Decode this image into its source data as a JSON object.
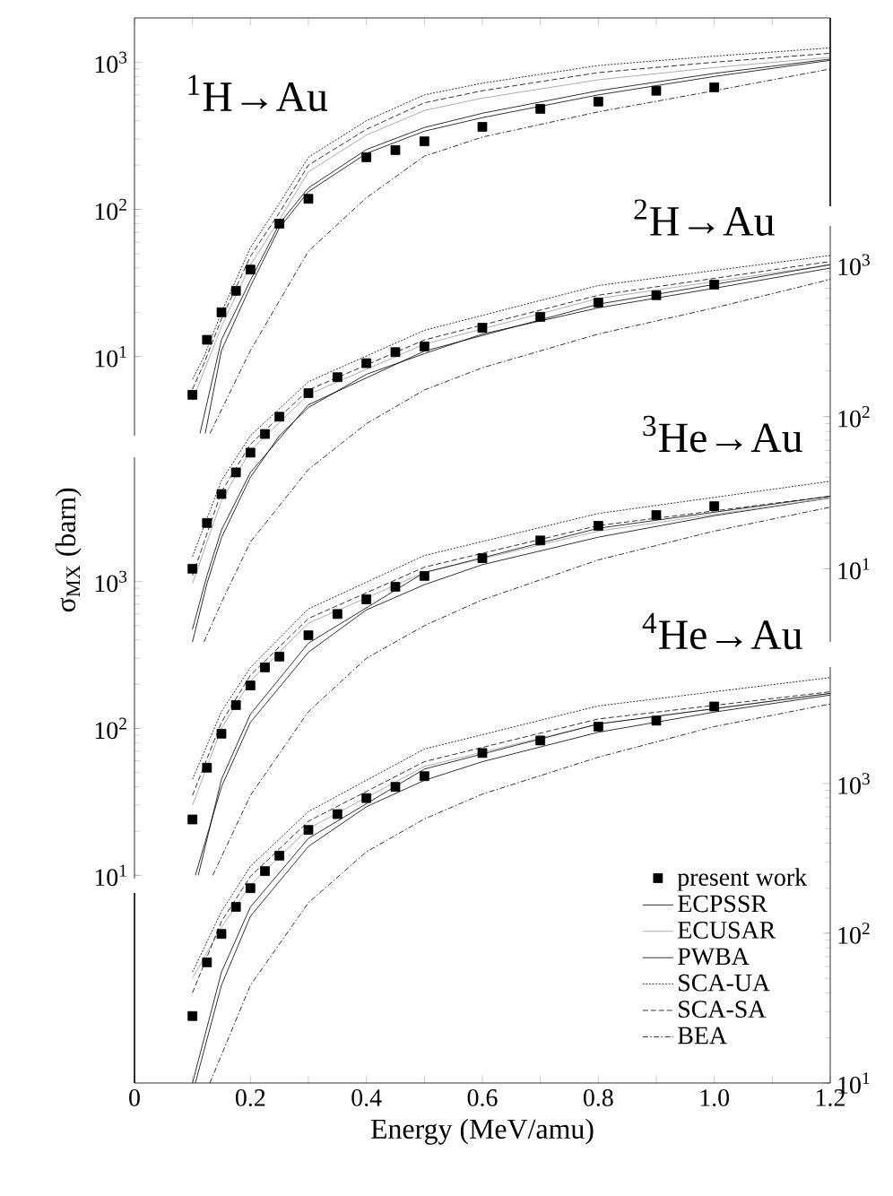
{
  "chart_data": [
    {
      "type": "line",
      "xlim": [
        0,
        1.2
      ],
      "xticks": [
        {
          "value": 0,
          "label": null
        },
        {
          "value": 0.1,
          "label": null
        },
        {
          "value": 0.2,
          "label": null
        },
        {
          "value": 0.3,
          "label": null
        },
        {
          "value": 0.4,
          "label": null
        },
        {
          "value": 0.5,
          "label": null
        },
        {
          "value": 0.6,
          "label": null
        },
        {
          "value": 0.7,
          "label": null
        },
        {
          "value": 0.8,
          "label": null
        },
        {
          "value": 0.9,
          "label": null
        },
        {
          "value": 1.0,
          "label": null
        },
        {
          "value": 1.1,
          "label": null
        },
        {
          "value": 1.2,
          "label": null
        }
      ],
      "tick_labels": "y",
      "log": "y",
      "ylim": [
        2.9,
        2000
      ],
      "yticks": [
        {
          "value": 10,
          "label": "10$^{1}$"
        },
        {
          "value": 100,
          "label": "10$^{2}$"
        },
        {
          "value": 1000,
          "label": "10$^{3}$"
        }
      ],
      "annotations": [
        "$^{1}$H→Au"
      ],
      "series": [
        {
          "type": "scatter",
          "marker": "square",
          "color": "#000000",
          "x": [
            0.1,
            0.125,
            0.15,
            0.175,
            0.2,
            0.25,
            0.3,
            0.4,
            0.45,
            0.5,
            0.6,
            0.7,
            0.8,
            0.9,
            1.0
          ],
          "values": [
            5.5,
            13,
            20,
            28,
            39,
            80,
            118,
            226,
            253,
            290,
            364,
            482,
            540,
            640,
            675
          ]
        },
        {
          "color": "#000000",
          "line_style": "solid",
          "x": [
            0.122,
            0.15,
            0.2,
            0.25,
            0.3,
            0.4,
            0.5,
            0.6,
            0.8,
            1.0,
            1.2
          ],
          "values": [
            3,
            11,
            30,
            75,
            132,
            240,
            340,
            420,
            600,
            800,
            1030
          ]
        },
        {
          "color": "#999999",
          "line_style": "solid",
          "x": [
            0.1,
            0.12,
            0.15,
            0.2,
            0.25,
            0.3,
            0.4,
            0.5,
            0.6,
            0.8,
            1.0,
            1.2
          ],
          "values": [
            5,
            8,
            16,
            42,
            85,
            180,
            320,
            470,
            570,
            760,
            920,
            1080
          ]
        },
        {
          "color": "#000000",
          "line_style": "solid",
          "x": [
            0.113,
            0.15,
            0.2,
            0.25,
            0.3,
            0.4,
            0.5,
            0.6,
            0.8,
            1.0,
            1.2
          ],
          "values": [
            3,
            13,
            33,
            80,
            140,
            255,
            360,
            450,
            640,
            840,
            1050
          ]
        },
        {
          "color": "#000000",
          "line_style": "dotted",
          "x": [
            0.1,
            0.12,
            0.15,
            0.2,
            0.25,
            0.3,
            0.4,
            0.5,
            0.6,
            0.8,
            1.0,
            1.2
          ],
          "values": [
            7,
            10,
            20,
            55,
            110,
            226,
            400,
            600,
            720,
            950,
            1100,
            1250
          ]
        },
        {
          "color": "#000000",
          "line_style": "dashed",
          "x": [
            0.1,
            0.12,
            0.15,
            0.2,
            0.25,
            0.3,
            0.4,
            0.5,
            0.6,
            0.8,
            1.0,
            1.2
          ],
          "values": [
            6,
            9,
            18,
            48,
            95,
            200,
            350,
            530,
            640,
            850,
            1000,
            1150
          ]
        },
        {
          "color": "#000000",
          "line_style": "dashdot",
          "x": [
            0.13,
            0.2,
            0.3,
            0.4,
            0.5,
            0.6,
            0.8,
            1.0,
            1.2
          ],
          "values": [
            3,
            11,
            52,
            120,
            230,
            310,
            460,
            640,
            900
          ]
        }
      ]
    },
    {
      "type": "line",
      "xlim": [
        0,
        1.2
      ],
      "tick_labels": "y",
      "log": "y2",
      "y2lim": [
        3.3,
        1800
      ],
      "y2ticks": [
        {
          "value": 10,
          "label": "10$^{1}$"
        },
        {
          "value": 100,
          "label": "10$^{2}$"
        },
        {
          "value": 1000,
          "label": "10$^{3}$"
        }
      ],
      "annotations": [
        "$^{2}$H→Au"
      ],
      "series": [
        {
          "type": "scatter",
          "marker": "square",
          "color": "#000000",
          "axis": "y2",
          "x": [
            0.1,
            0.125,
            0.15,
            0.175,
            0.2,
            0.225,
            0.25,
            0.3,
            0.35,
            0.4,
            0.45,
            0.5,
            0.6,
            0.7,
            0.8,
            0.9,
            1.0
          ],
          "values": [
            10,
            20,
            31,
            43,
            58,
            77,
            100,
            143,
            182,
            225,
            266,
            290,
            385,
            454,
            563,
            630,
            740
          ]
        },
        {
          "color": "#000000",
          "line_style": "solid",
          "axis": "y2",
          "x": [
            0.1,
            0.125,
            0.15,
            0.2,
            0.25,
            0.3,
            0.4,
            0.5,
            0.6,
            0.8,
            1.0,
            1.2
          ],
          "values": [
            3.3,
            8,
            16,
            40,
            75,
            115,
            190,
            260,
            350,
            520,
            700,
            950
          ]
        },
        {
          "color": "#999999",
          "line_style": "solid",
          "axis": "y2",
          "x": [
            0.1,
            0.15,
            0.2,
            0.3,
            0.5,
            0.8,
            1.2
          ],
          "values": [
            8,
            28,
            60,
            140,
            300,
            600,
            1000
          ]
        },
        {
          "color": "#000000",
          "line_style": "solid",
          "axis": "y2",
          "x": [
            0.1,
            0.125,
            0.15,
            0.2,
            0.3,
            0.5,
            0.8,
            1.2
          ],
          "values": [
            4,
            9,
            18,
            43,
            120,
            270,
            550,
            1000
          ]
        },
        {
          "color": "#000000",
          "line_style": "dotted",
          "axis": "y2",
          "x": [
            0.1,
            0.15,
            0.2,
            0.3,
            0.5,
            0.8,
            1.2
          ],
          "values": [
            12,
            38,
            75,
            170,
            370,
            730,
            1150
          ]
        },
        {
          "color": "#000000",
          "line_style": "dashed",
          "axis": "y2",
          "x": [
            0.1,
            0.15,
            0.2,
            0.3,
            0.5,
            0.8,
            1.2
          ],
          "values": [
            9,
            32,
            66,
            150,
            320,
            630,
            1050
          ]
        },
        {
          "color": "#000000",
          "line_style": "dashdot",
          "axis": "y2",
          "x": [
            0.12,
            0.15,
            0.2,
            0.3,
            0.4,
            0.5,
            0.6,
            0.8,
            1.0,
            1.2
          ],
          "values": [
            3.3,
            6,
            15,
            45,
            90,
            150,
            210,
            350,
            520,
            800
          ]
        }
      ]
    },
    {
      "type": "line",
      "xlim": [
        0,
        1.2
      ],
      "tick_labels": "y",
      "log": "y",
      "ylim": [
        9.5,
        7000
      ],
      "yticks": [
        {
          "value": 10,
          "label": "10$^{1}$"
        },
        {
          "value": 100,
          "label": "10$^{2}$"
        },
        {
          "value": 1000,
          "label": "10$^{3}$"
        }
      ],
      "ylabel": "σ$_{MX}$ (barn)",
      "annotations": [
        "$^{3}$He→Au"
      ],
      "series": [
        {
          "type": "scatter",
          "marker": "square",
          "color": "#000000",
          "x": [
            0.1,
            0.125,
            0.15,
            0.175,
            0.2,
            0.225,
            0.25,
            0.3,
            0.35,
            0.4,
            0.45,
            0.5,
            0.6,
            0.7,
            0.8,
            0.9,
            1.0
          ],
          "values": [
            24,
            54,
            92,
            144,
            196,
            260,
            308,
            430,
            600,
            755,
            920,
            1090,
            1440,
            1900,
            2390,
            2830,
            3250
          ]
        },
        {
          "color": "#000000",
          "line_style": "solid",
          "x": [
            0.105,
            0.15,
            0.2,
            0.3,
            0.4,
            0.5,
            0.6,
            0.8,
            1.0,
            1.2
          ],
          "values": [
            10,
            40,
            110,
            330,
            640,
            950,
            1300,
            2000,
            2800,
            3700
          ]
        },
        {
          "color": "#999999",
          "line_style": "solid",
          "x": [
            0.1,
            0.15,
            0.2,
            0.3,
            0.5,
            0.8,
            1.2
          ],
          "values": [
            30,
            100,
            210,
            520,
            1150,
            2200,
            3700
          ]
        },
        {
          "color": "#000000",
          "line_style": "solid",
          "x": [
            0.11,
            0.15,
            0.2,
            0.3,
            0.5,
            0.8,
            1.2
          ],
          "values": [
            10,
            45,
            125,
            380,
            1150,
            2300,
            3800
          ]
        },
        {
          "color": "#000000",
          "line_style": "dotted",
          "x": [
            0.1,
            0.15,
            0.2,
            0.3,
            0.5,
            0.8,
            1.2
          ],
          "values": [
            45,
            130,
            260,
            650,
            1500,
            2900,
            4800
          ]
        },
        {
          "color": "#000000",
          "line_style": "dashed",
          "x": [
            0.1,
            0.15,
            0.2,
            0.3,
            0.5,
            0.8,
            1.2
          ],
          "values": [
            35,
            110,
            230,
            560,
            1250,
            2400,
            3800
          ]
        },
        {
          "color": "#000000",
          "line_style": "dashdot",
          "x": [
            0.135,
            0.2,
            0.3,
            0.4,
            0.5,
            0.6,
            0.8,
            1.0,
            1.2
          ],
          "values": [
            10,
            35,
            130,
            300,
            500,
            750,
            1400,
            2200,
            3200
          ]
        }
      ]
    },
    {
      "type": "line",
      "xlim": [
        0,
        1.2
      ],
      "xticks": [
        0,
        {
          "value": 0.1,
          "label": null
        },
        0.2,
        {
          "value": 0.3,
          "label": null
        },
        0.4,
        {
          "value": 0.5,
          "label": null
        },
        0.6,
        {
          "value": 0.7,
          "label": null
        },
        0.8,
        {
          "value": 0.9,
          "label": null
        },
        {
          "value": 1.0,
          "label": "1.0"
        },
        {
          "value": 1.1,
          "label": null
        },
        1.2
      ],
      "log": "y2",
      "y2lim": [
        10,
        6000
      ],
      "y2ticks": [
        {
          "value": 10,
          "label": "10$^{1}$"
        },
        {
          "value": 100,
          "label": "10$^{2}$"
        },
        {
          "value": 1000,
          "label": "10$^{3}$"
        }
      ],
      "xlabel": "Energy (MeV/amu)",
      "legend": "bottom right",
      "annotations": [
        "$^{4}$He→Au"
      ],
      "series": [
        {
          "type": "scatter",
          "name": "present work",
          "marker": "square",
          "color": "#000000",
          "axis": "y2",
          "x": [
            0.1,
            0.125,
            0.15,
            0.175,
            0.2,
            0.225,
            0.25,
            0.3,
            0.35,
            0.4,
            0.45,
            0.5,
            0.6,
            0.7,
            0.8,
            0.9,
            1.0
          ],
          "values": [
            28,
            64,
            99,
            150,
            200,
            260,
            330,
            490,
            625,
            800,
            950,
            1120,
            1600,
            1940,
            2400,
            2630,
            3270
          ]
        },
        {
          "name": "ECPSSR",
          "color": "#000000",
          "line_style": "solid",
          "axis": "y2",
          "x": [
            0.105,
            0.15,
            0.2,
            0.3,
            0.4,
            0.5,
            0.6,
            0.8,
            1.0,
            1.2
          ],
          "values": [
            10,
            45,
            130,
            380,
            700,
            1050,
            1400,
            2200,
            3000,
            3900
          ]
        },
        {
          "name": "ECUSAR",
          "color": "#999999",
          "line_style": "solid",
          "axis": "y2",
          "x": [
            0.1,
            0.15,
            0.2,
            0.3,
            0.5,
            0.8,
            1.2
          ],
          "values": [
            50,
            110,
            210,
            500,
            1300,
            2500,
            4000
          ]
        },
        {
          "name": "PWBA",
          "color": "#000000",
          "line_style": "solid",
          "axis": "y2",
          "x": [
            0.1,
            0.15,
            0.2,
            0.3,
            0.5,
            0.8,
            1.2
          ],
          "values": [
            10,
            55,
            150,
            430,
            1250,
            2500,
            4000
          ]
        },
        {
          "name": "SCA-UA",
          "color": "#000000",
          "line_style": "dotted",
          "axis": "y2",
          "x": [
            0.1,
            0.15,
            0.2,
            0.3,
            0.5,
            0.8,
            1.2
          ],
          "values": [
            55,
            140,
            280,
            650,
            1700,
            3300,
            5100
          ]
        },
        {
          "name": "SCA-SA",
          "color": "#000000",
          "line_style": "dashed",
          "axis": "y2",
          "x": [
            0.1,
            0.15,
            0.2,
            0.3,
            0.5,
            0.8,
            1.2
          ],
          "values": [
            40,
            120,
            240,
            560,
            1400,
            2700,
            4100
          ]
        },
        {
          "name": "BEA",
          "color": "#000000",
          "line_style": "dashdot",
          "axis": "y2",
          "x": [
            0.13,
            0.2,
            0.3,
            0.4,
            0.5,
            0.6,
            0.8,
            1.0,
            1.2
          ],
          "values": [
            10,
            45,
            160,
            350,
            580,
            850,
            1500,
            2400,
            3400
          ]
        }
      ]
    }
  ]
}
